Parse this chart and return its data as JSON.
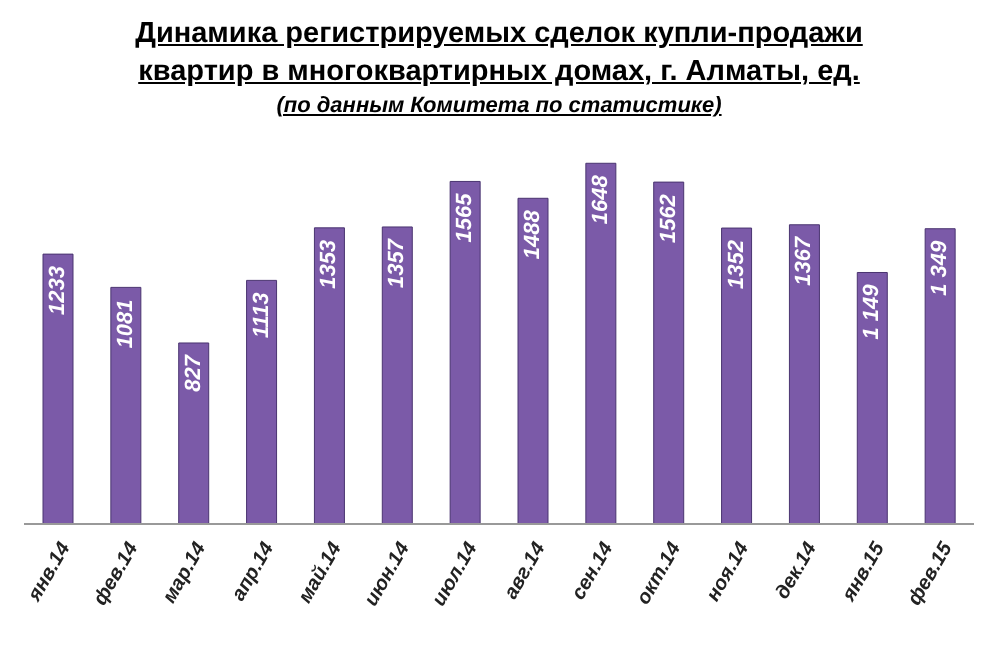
{
  "chart_data": {
    "type": "bar",
    "title": "Динамика регистрируемых сделок купли-продажи квартир в многоквартирных домах, г. Алматы, ед.",
    "subtitle": "(по данным Комитета по статистике)",
    "categories": [
      "янв.14",
      "фев.14",
      "мар.14",
      "апр.14",
      "май.14",
      "июн.14",
      "июл.14",
      "авг.14",
      "сен.14",
      "окт.14",
      "ноя.14",
      "дек.14",
      "янв.15",
      "фев.15"
    ],
    "values": [
      1233,
      1081,
      827,
      1113,
      1353,
      1357,
      1565,
      1488,
      1648,
      1562,
      1352,
      1367,
      1149,
      1349
    ],
    "value_labels": [
      "1233",
      "1081",
      "827",
      "1113",
      "1353",
      "1357",
      "1565",
      "1488",
      "1648",
      "1562",
      "1352",
      "1367",
      "1 149",
      "1 349"
    ],
    "color": "#7b5aa8"
  }
}
